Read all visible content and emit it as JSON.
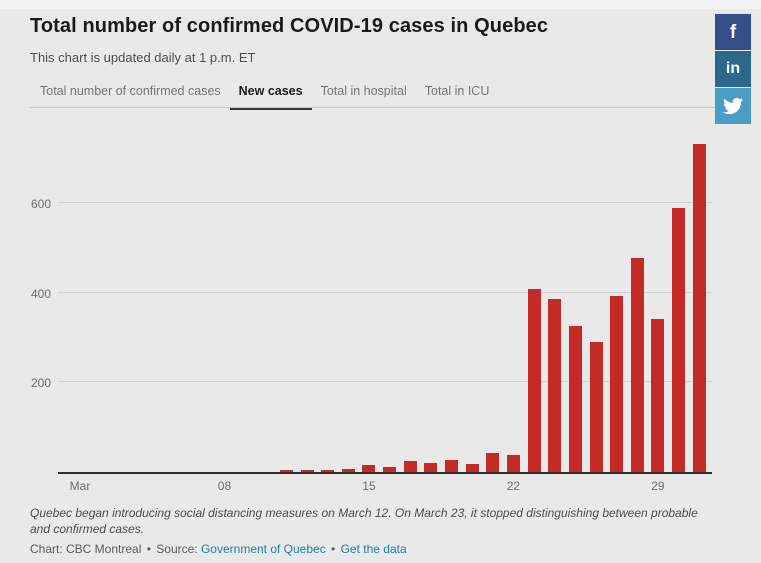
{
  "header": {
    "title": "Total number of confirmed COVID-19 cases in Quebec",
    "subtitle": "This chart is updated daily at 1 p.m. ET"
  },
  "tabs": [
    {
      "label": "Total number of confirmed cases",
      "active": false
    },
    {
      "label": "New cases",
      "active": true
    },
    {
      "label": "Total in hospital",
      "active": false
    },
    {
      "label": "Total in ICU",
      "active": false
    }
  ],
  "share": [
    {
      "name": "facebook",
      "glyph": "f",
      "color": "#344e88"
    },
    {
      "name": "linkedin",
      "glyph": "in",
      "color": "#2c688c"
    },
    {
      "name": "twitter",
      "glyph": "",
      "color": "#4a9ec6"
    }
  ],
  "chart_data": {
    "type": "bar",
    "title": "Total number of confirmed COVID-19 cases in Quebec",
    "series_name": "New cases",
    "x": [
      "Mar 1",
      "Mar 2",
      "Mar 3",
      "Mar 4",
      "Mar 5",
      "Mar 6",
      "Mar 7",
      "Mar 8",
      "Mar 9",
      "Mar 10",
      "Mar 11",
      "Mar 12",
      "Mar 13",
      "Mar 14",
      "Mar 15",
      "Mar 16",
      "Mar 17",
      "Mar 18",
      "Mar 19",
      "Mar 20",
      "Mar 21",
      "Mar 22",
      "Mar 23",
      "Mar 24",
      "Mar 25",
      "Mar 26",
      "Mar 27",
      "Mar 28",
      "Mar 29",
      "Mar 30",
      "Mar 31"
    ],
    "values": [
      0,
      0,
      0,
      0,
      0,
      0,
      0,
      0,
      0,
      0,
      5,
      4,
      4,
      7,
      16,
      11,
      24,
      20,
      27,
      19,
      42,
      38,
      409,
      385,
      326,
      290,
      392,
      477,
      342,
      590,
      732
    ],
    "bar_color": "#c42b26",
    "ylim": [
      0,
      790
    ],
    "yticks": [
      200,
      400,
      600
    ],
    "xticks": [
      {
        "day": 1,
        "label": "Mar"
      },
      {
        "day": 8,
        "label": "08"
      },
      {
        "day": 15,
        "label": "15"
      },
      {
        "day": 22,
        "label": "22"
      },
      {
        "day": 29,
        "label": "29"
      }
    ],
    "grid": "horizontal",
    "legend": "none"
  },
  "footer": {
    "note": "Quebec began introducing social distancing measures on March 12. On March 23, it stopped distinguishing between probable and confirmed cases.",
    "credit": "Chart: CBC Montreal",
    "sep1": "•",
    "source_label": "Source:",
    "source_link": "Government of Quebec",
    "sep2": "•",
    "data_link": "Get the data"
  }
}
